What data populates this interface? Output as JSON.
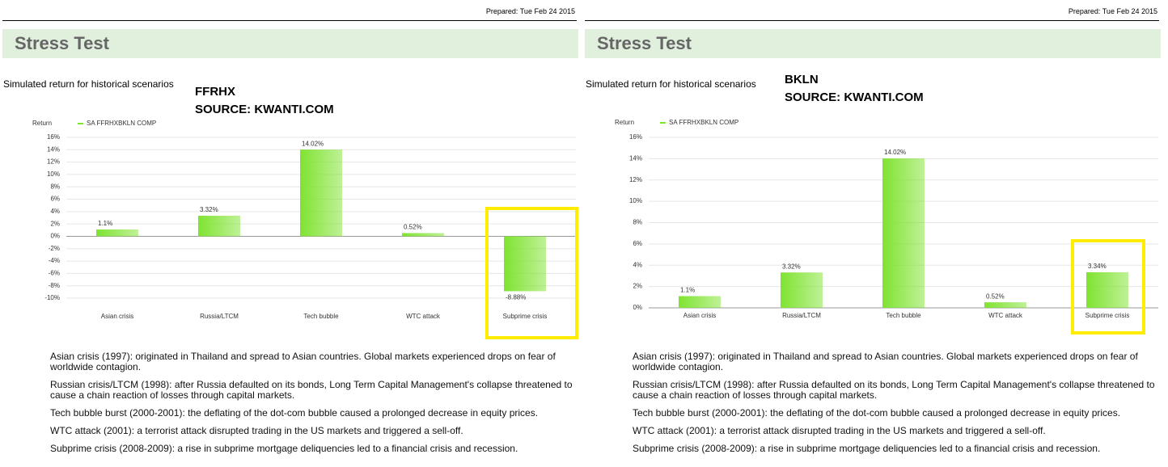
{
  "panels": [
    {
      "prepared": "Prepared: Tue Feb 24 2015",
      "heading": "Stress Test",
      "subtitle": "Simulated return for historical scenarios",
      "annotation": [
        "FFRHX",
        "SOURCE: KWANTI.COM"
      ],
      "descriptions": [
        "Asian crisis (1997): originated in Thailand and spread to Asian countries. Global markets experienced drops on fear of worldwide contagion.",
        "Russian crisis/LTCM (1998): after Russia defaulted on its bonds, Long Term Capital Management's collapse threatened to cause a chain reaction of losses through capital markets.",
        "Tech bubble burst (2000-2001): the deflating of the dot-com bubble caused a prolonged decrease in equity prices.",
        "WTC attack (2001): a terrorist attack disrupted trading in the US markets and triggered a sell-off.",
        "Subprime crisis (2008-2009): a rise in subprime mortgage deliquencies led to a financial crisis and recession."
      ]
    },
    {
      "prepared": "Prepared: Tue Feb 24 2015",
      "heading": "Stress Test",
      "subtitle": "Simulated return for historical scenarios",
      "annotation": [
        "BKLN",
        "SOURCE: KWANTI.COM"
      ],
      "descriptions": [
        "Asian crisis (1997): originated in Thailand and spread to Asian countries. Global markets experienced drops on fear of worldwide contagion.",
        "Russian crisis/LTCM (1998): after Russia defaulted on its bonds, Long Term Capital Management's collapse threatened to cause a chain reaction of losses through capital markets.",
        "Tech bubble burst (2000-2001): the deflating of the dot-com bubble caused a prolonged decrease in equity prices.",
        "WTC attack (2001): a terrorist attack disrupted trading in the US markets and triggered a sell-off.",
        "Subprime crisis (2008-2009): a rise in subprime mortgage deliquencies led to a financial crisis and recession."
      ]
    }
  ],
  "chart_data": [
    {
      "type": "bar",
      "y_label": "Return",
      "categories": [
        "Asian crisis",
        "Russia/LTCM",
        "Tech bubble",
        "WTC attack",
        "Subprime crisis"
      ],
      "series": [
        {
          "name": "SA FFRHXBKLN COMP",
          "color": "#7fe330",
          "values": [
            1.1,
            3.32,
            14.02,
            0.52,
            -8.88
          ],
          "value_labels": [
            "1.1%",
            "3.32%",
            "14.02%",
            "0.52%",
            "-8.88%"
          ]
        }
      ],
      "ylim": [
        -10,
        16
      ],
      "yticks": [
        {
          "value": 16,
          "label": "16%"
        },
        {
          "value": 14,
          "label": "14%"
        },
        {
          "value": 12,
          "label": "12%"
        },
        {
          "value": 10,
          "label": "10%"
        },
        {
          "value": 8,
          "label": "8%"
        },
        {
          "value": 6,
          "label": "6%"
        },
        {
          "value": 4,
          "label": "4%"
        },
        {
          "value": 2,
          "label": "2%"
        },
        {
          "value": 0,
          "label": "0%"
        },
        {
          "value": -2,
          "label": "-2%"
        },
        {
          "value": -4,
          "label": "-4%"
        },
        {
          "value": -6,
          "label": "-6%"
        },
        {
          "value": -8,
          "label": "-8%"
        },
        {
          "value": -10,
          "label": "-10%"
        }
      ],
      "grid": true
    },
    {
      "type": "bar",
      "y_label": "Return",
      "categories": [
        "Asian crisis",
        "Russia/LTCM",
        "Tech bubble",
        "WTC attack",
        "Subprime crisis"
      ],
      "series": [
        {
          "name": "SA FFRHXBKLN COMP",
          "color": "#7fe330",
          "values": [
            1.1,
            3.32,
            14.02,
            0.52,
            3.34
          ],
          "value_labels": [
            "1.1%",
            "3.32%",
            "14.02%",
            "0.52%",
            "3.34%"
          ]
        }
      ],
      "ylim": [
        0,
        16
      ],
      "yticks": [
        {
          "value": 16,
          "label": "16%"
        },
        {
          "value": 14,
          "label": "14%"
        },
        {
          "value": 12,
          "label": "12%"
        },
        {
          "value": 10,
          "label": "10%"
        },
        {
          "value": 8,
          "label": "8%"
        },
        {
          "value": 6,
          "label": "6%"
        },
        {
          "value": 4,
          "label": "4%"
        },
        {
          "value": 2,
          "label": "2%"
        },
        {
          "value": 0,
          "label": "0%"
        }
      ],
      "grid": true
    }
  ]
}
